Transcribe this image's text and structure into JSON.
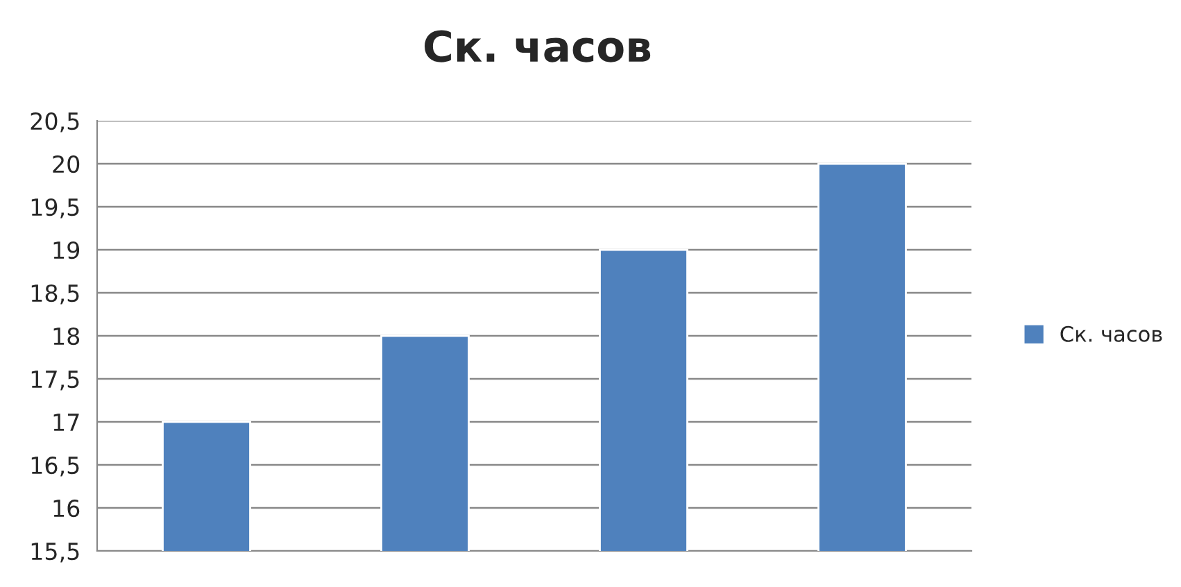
{
  "chart_data": {
    "type": "bar",
    "title": "Ск. часов",
    "categories": [
      null,
      null,
      null,
      null
    ],
    "series": [
      {
        "name": "Ск. часов",
        "color": "#4f81bd",
        "values": [
          17,
          18,
          19,
          20
        ]
      }
    ],
    "ylim": [
      15.5,
      20.5
    ],
    "yticks": [
      {
        "value": 15.5,
        "label": "15,5"
      },
      16,
      {
        "value": 16.5,
        "label": "16,5"
      },
      17,
      {
        "value": 17.5,
        "label": "17,5"
      },
      18,
      {
        "value": 18.5,
        "label": "18,5"
      },
      19,
      {
        "value": 19.5,
        "label": "19,5"
      },
      20,
      {
        "value": 20.5,
        "label": "20,5"
      }
    ],
    "grid": "y",
    "legend": "right"
  }
}
